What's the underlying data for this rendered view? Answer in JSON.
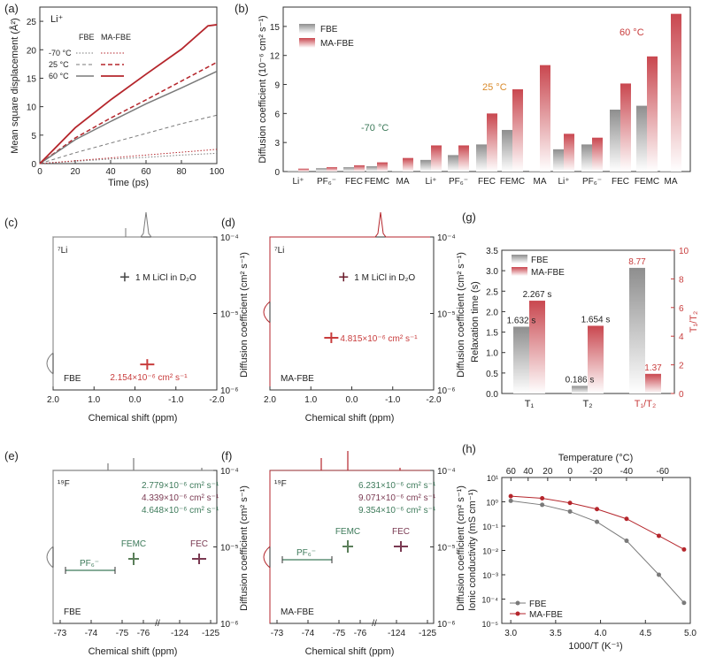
{
  "colors": {
    "fbe": "#7a7a7a",
    "mafbe": "#b5262c",
    "green": "#3d7a5a",
    "orange": "#d98a2b",
    "purple": "#7a3a52",
    "red": "#c83c3c"
  },
  "chart_data": [
    {
      "id": "a",
      "type": "line",
      "panel_label": "(a)",
      "title": "Li⁺",
      "xlabel": "Time (ps)",
      "ylabel": "Mean square displacement (Å²)",
      "xlim": [
        0,
        100
      ],
      "ylim": [
        0,
        27.5
      ],
      "xticks": [
        "0",
        "20",
        "40",
        "60",
        "80",
        "100"
      ],
      "yticks": [
        "0",
        "5",
        "10",
        "15",
        "20",
        "25"
      ],
      "legend_headers": [
        "FBE",
        "MA-FBE"
      ],
      "legend_rows": [
        "-70 °C",
        "25 °C",
        "60 °C"
      ],
      "series": [
        {
          "name": "FBE -70 °C",
          "x": [
            0,
            20,
            40,
            60,
            80,
            100
          ],
          "y": [
            0,
            0.4,
            0.8,
            1.1,
            1.5,
            1.8
          ]
        },
        {
          "name": "MA-FBE -70 °C",
          "x": [
            0,
            20,
            40,
            60,
            80,
            100
          ],
          "y": [
            0,
            0.5,
            1.0,
            1.5,
            2.0,
            2.5
          ]
        },
        {
          "name": "FBE 25 °C",
          "x": [
            0,
            20,
            40,
            60,
            80,
            100
          ],
          "y": [
            0,
            1.9,
            3.6,
            5.3,
            7.0,
            8.5
          ]
        },
        {
          "name": "MA-FBE 25 °C",
          "x": [
            0,
            20,
            40,
            60,
            80,
            100
          ],
          "y": [
            0,
            4.5,
            8.0,
            11.2,
            14.5,
            17.8
          ]
        },
        {
          "name": "FBE 60 °C",
          "x": [
            0,
            20,
            40,
            60,
            80,
            100
          ],
          "y": [
            0,
            4.2,
            7.4,
            10.5,
            13.3,
            16.2
          ]
        },
        {
          "name": "MA-FBE 60 °C",
          "x": [
            0,
            20,
            40,
            60,
            80,
            95,
            100
          ],
          "y": [
            0,
            6.3,
            11.2,
            15.7,
            20.1,
            24.2,
            24.4
          ]
        }
      ]
    },
    {
      "id": "b",
      "type": "bar",
      "panel_label": "(b)",
      "ylabel": "Diffusion coefficient (10⁻⁶ cm² s⁻¹)",
      "ylim": [
        0,
        17
      ],
      "yticks": [
        "0",
        "3",
        "6",
        "9",
        "12",
        "15"
      ],
      "legend": [
        "FBE",
        "MA-FBE"
      ],
      "groups": [
        {
          "label": "-70 °C",
          "categories": [
            "Li⁺",
            "PF₆⁻",
            "FEC",
            "FEMC",
            "MA"
          ],
          "fbe": [
            0.1,
            0.35,
            0.45,
            0.55,
            0.05
          ],
          "mafbe": [
            0.3,
            0.45,
            0.65,
            0.95,
            1.4
          ]
        },
        {
          "label": "25 °C",
          "categories": [
            "Li⁺",
            "PF₆⁻",
            "FEC",
            "FEMC",
            "MA"
          ],
          "fbe": [
            1.2,
            1.7,
            2.8,
            4.3,
            0.05
          ],
          "mafbe": [
            2.7,
            2.7,
            6.0,
            8.5,
            11.0
          ]
        },
        {
          "label": "60 °C",
          "categories": [
            "Li⁺",
            "PF₆⁻",
            "FEC",
            "FEMC",
            "MA"
          ],
          "fbe": [
            2.3,
            2.8,
            6.4,
            6.8,
            0.05
          ],
          "mafbe": [
            3.9,
            3.5,
            9.1,
            11.9,
            16.3
          ]
        }
      ]
    },
    {
      "id": "c",
      "type": "scatter",
      "panel_label": "(c)",
      "nucleus": "⁷Li",
      "sample": "FBE",
      "xlabel": "Chemical shift (ppm)",
      "ylabel": "Diffusion coefficient (cm² s⁻¹)",
      "xticks": [
        "2.0",
        "1.0",
        "0.0",
        "-1.0",
        "-2.0"
      ],
      "yticks": [
        "10⁻⁶",
        "10⁻⁵",
        "10⁻⁴"
      ],
      "ref_label": "1 M LiCl in D₂O",
      "ref": {
        "x": 0.25,
        "y": 3e-05
      },
      "peak": {
        "x": -0.3,
        "y": 2.154e-06
      },
      "annotation": "2.154×10⁻⁶ cm² s⁻¹"
    },
    {
      "id": "d",
      "type": "scatter",
      "panel_label": "(d)",
      "nucleus": "⁷Li",
      "sample": "MA-FBE",
      "xlabel": "Chemical shift (ppm)",
      "ylabel": "Diffusion coefficient (cm² s⁻¹)",
      "xticks": [
        "2.0",
        "1.0",
        "0.0",
        "-1.0",
        "-2.0"
      ],
      "yticks": [
        "10⁻⁶",
        "10⁻⁵",
        "10⁻⁴"
      ],
      "ref_label": "1 M LiCl in D₂O",
      "ref": {
        "x": 0.2,
        "y": 3e-05
      },
      "peak": {
        "x": 0.5,
        "y": 4.815e-06
      },
      "annotation": "4.815×10⁻⁶ cm² s⁻¹"
    },
    {
      "id": "e",
      "type": "scatter",
      "panel_label": "(e)",
      "nucleus": "¹⁹F",
      "sample": "FBE",
      "xlabel": "Chemical shift (ppm)",
      "ylabel": "Diffusion coefficient (cm² s⁻¹)",
      "xticks": [
        "-73",
        "-74",
        "-75",
        "-76",
        "-124",
        "-125"
      ],
      "yticks": [
        "10⁻⁶",
        "10⁻⁵",
        "10⁻⁴"
      ],
      "species": [
        "PF₆⁻",
        "FEMC",
        "FEC"
      ],
      "values": [
        "2.779×10⁻⁶ cm² s⁻¹",
        "4.339×10⁻⁶ cm² s⁻¹",
        "4.648×10⁻⁶ cm² s⁻¹"
      ]
    },
    {
      "id": "f",
      "type": "scatter",
      "panel_label": "(f)",
      "nucleus": "¹⁹F",
      "sample": "MA-FBE",
      "xlabel": "Chemical shift (ppm)",
      "ylabel": "Diffusion coefficient (cm² s⁻¹)",
      "xticks": [
        "-73",
        "-74",
        "-75",
        "-76",
        "-124",
        "-125"
      ],
      "yticks": [
        "10⁻⁶",
        "10⁻⁵",
        "10⁻⁴"
      ],
      "species": [
        "PF₆⁻",
        "FEMC",
        "FEC"
      ],
      "values": [
        "6.231×10⁻⁶ cm² s⁻¹",
        "9.071×10⁻⁶ cm² s⁻¹",
        "9.354×10⁻⁶ cm² s⁻¹"
      ]
    },
    {
      "id": "g",
      "type": "bar",
      "panel_label": "(g)",
      "ylabel": "Relaxation time (s)",
      "y2label": "T₁/T₂",
      "ylim": [
        0,
        3.5
      ],
      "y2lim": [
        0,
        10
      ],
      "yticks": [
        "0.0",
        "0.5",
        "1.0",
        "1.5",
        "2.0",
        "2.5",
        "3.0",
        "3.5"
      ],
      "y2ticks": [
        "0",
        "2",
        "4",
        "6",
        "8",
        "10"
      ],
      "categories": [
        "T₁",
        "T₂",
        "T₁/T₂"
      ],
      "legend": [
        "FBE",
        "MA-FBE"
      ],
      "fbe": [
        1.632,
        0.186,
        8.77
      ],
      "mafbe": [
        2.267,
        1.654,
        1.37
      ],
      "labels_fbe": [
        "1.632 s",
        "0.186 s",
        "8.77"
      ],
      "labels_mafbe": [
        "2.267 s",
        "1.654 s",
        "1.37"
      ]
    },
    {
      "id": "h",
      "type": "line",
      "panel_label": "(h)",
      "xlabel": "1000/T (K⁻¹)",
      "ylabel": "Ionic conductivity (mS cm⁻¹)",
      "x2label": "Temperature (°C)",
      "xlim": [
        2.9,
        5.0
      ],
      "xticks": [
        "3.0",
        "3.5",
        "4.0",
        "4.5",
        "5.0"
      ],
      "x2ticks": [
        "60",
        "40",
        "20",
        "0",
        "-20",
        "-40",
        "-60"
      ],
      "yticks": [
        "10⁻⁵",
        "10⁻⁴",
        "10⁻³",
        "10⁻²",
        "10⁻¹",
        "10⁰",
        "10¹"
      ],
      "legend": [
        "FBE",
        "MA-FBE"
      ],
      "series": [
        {
          "name": "FBE",
          "x": [
            3.0,
            3.35,
            3.66,
            3.96,
            4.29,
            4.65,
            4.93
          ],
          "y": [
            1.1,
            0.75,
            0.4,
            0.15,
            0.025,
            0.001,
            7e-05
          ]
        },
        {
          "name": "MA-FBE",
          "x": [
            3.0,
            3.35,
            3.66,
            3.96,
            4.29,
            4.65,
            4.93
          ],
          "y": [
            1.7,
            1.4,
            0.9,
            0.5,
            0.2,
            0.04,
            0.011
          ]
        }
      ]
    }
  ]
}
